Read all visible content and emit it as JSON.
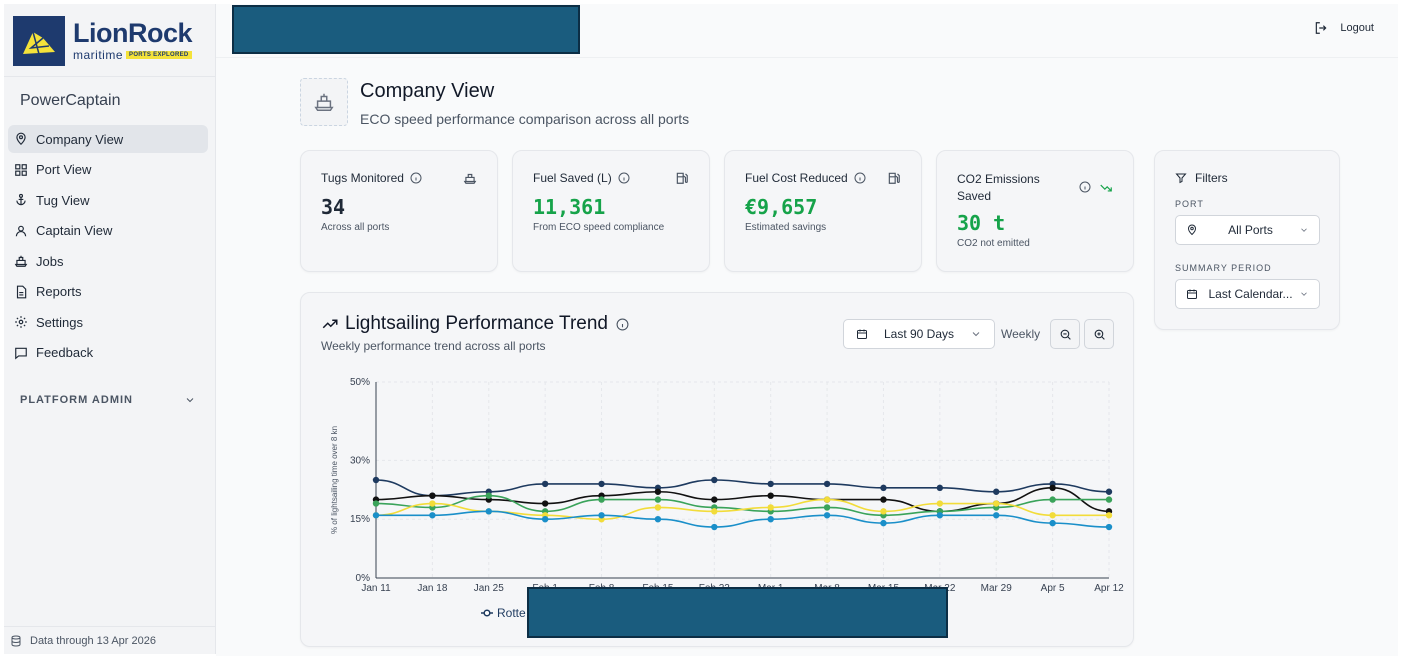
{
  "brand": {
    "name": "LionRock",
    "sub": "maritime",
    "tag": "PORTS EXPLORED"
  },
  "app_name": "PowerCaptain",
  "nav": [
    {
      "label": "Company View",
      "icon": "map-pin-icon",
      "active": true
    },
    {
      "label": "Port View",
      "icon": "grid-icon",
      "active": false
    },
    {
      "label": "Tug View",
      "icon": "anchor-icon",
      "active": false
    },
    {
      "label": "Captain View",
      "icon": "user-icon",
      "active": false
    },
    {
      "label": "Jobs",
      "icon": "ship-icon",
      "active": false
    },
    {
      "label": "Reports",
      "icon": "file-icon",
      "active": false
    },
    {
      "label": "Settings",
      "icon": "gear-icon",
      "active": false
    },
    {
      "label": "Feedback",
      "icon": "message-icon",
      "active": false
    }
  ],
  "platform_admin": "PLATFORM ADMIN",
  "data_through": "Data through 13 Apr 2026",
  "logout": "Logout",
  "page": {
    "title": "Company View",
    "subtitle": "ECO speed performance comparison across all ports"
  },
  "stats": [
    {
      "label": "Tugs Monitored",
      "value": "34",
      "sub": "Across all ports",
      "green": false
    },
    {
      "label": "Fuel Saved (L)",
      "value": "11,361",
      "sub": "From ECO speed compliance",
      "green": true
    },
    {
      "label": "Fuel Cost Reduced",
      "value": "€9,657",
      "sub": "Estimated savings",
      "green": true
    },
    {
      "label": "CO2 Emissions Saved",
      "value": "30 t",
      "sub": "CO2 not emitted",
      "green": true
    }
  ],
  "filters": {
    "title": "Filters",
    "port_label": "PORT",
    "port_value": "All Ports",
    "period_label": "SUMMARY PERIOD",
    "period_value": "Last Calendar..."
  },
  "chart_header": {
    "title": "Lightsailing Performance Trend",
    "subtitle": "Weekly performance trend across all ports",
    "range": "Last 90 Days",
    "granularity": "Weekly"
  },
  "colors": {
    "green": "#16a34a",
    "navy": "#1e3a6e",
    "yellow": "#f4e23a",
    "redact": "#1a5c7e"
  },
  "chart_data": {
    "type": "line",
    "ylabel": "% of lightsailing time over 8 kn",
    "xlabel": "",
    "ylim": [
      0,
      50
    ],
    "yticks": [
      "0%",
      "15%",
      "30%",
      "50%"
    ],
    "ytick_values": [
      0,
      15,
      30,
      50
    ],
    "grid": true,
    "categories": [
      "Jan 11",
      "Jan 18",
      "Jan 25",
      "Feb 1",
      "Feb 8",
      "Feb 15",
      "Feb 22",
      "Mar 1",
      "Mar 8",
      "Mar 15",
      "Mar 22",
      "Mar 29",
      "Apr 5",
      "Apr 12"
    ],
    "legend_visible": [
      "Rotte"
    ],
    "series": [
      {
        "color": "#1e3a5f",
        "values": [
          25,
          21,
          22,
          24,
          24,
          23,
          25,
          24,
          24,
          23,
          23,
          22,
          24,
          22
        ]
      },
      {
        "name": "Rotte",
        "color": "#111111",
        "values": [
          20,
          21,
          20,
          19,
          21,
          22,
          20,
          21,
          20,
          20,
          17,
          19,
          23,
          17
        ]
      },
      {
        "color": "#3aa35a",
        "values": [
          19,
          18,
          21,
          17,
          20,
          20,
          18,
          17,
          18,
          16,
          17,
          18,
          20,
          20
        ]
      },
      {
        "color": "#f2dc3a",
        "values": [
          16,
          19,
          17,
          16,
          15,
          18,
          17,
          18,
          20,
          17,
          19,
          19,
          16,
          16
        ]
      },
      {
        "color": "#1a8fc9",
        "values": [
          16,
          16,
          17,
          15,
          16,
          15,
          13,
          15,
          16,
          14,
          16,
          16,
          14,
          13
        ]
      }
    ]
  }
}
